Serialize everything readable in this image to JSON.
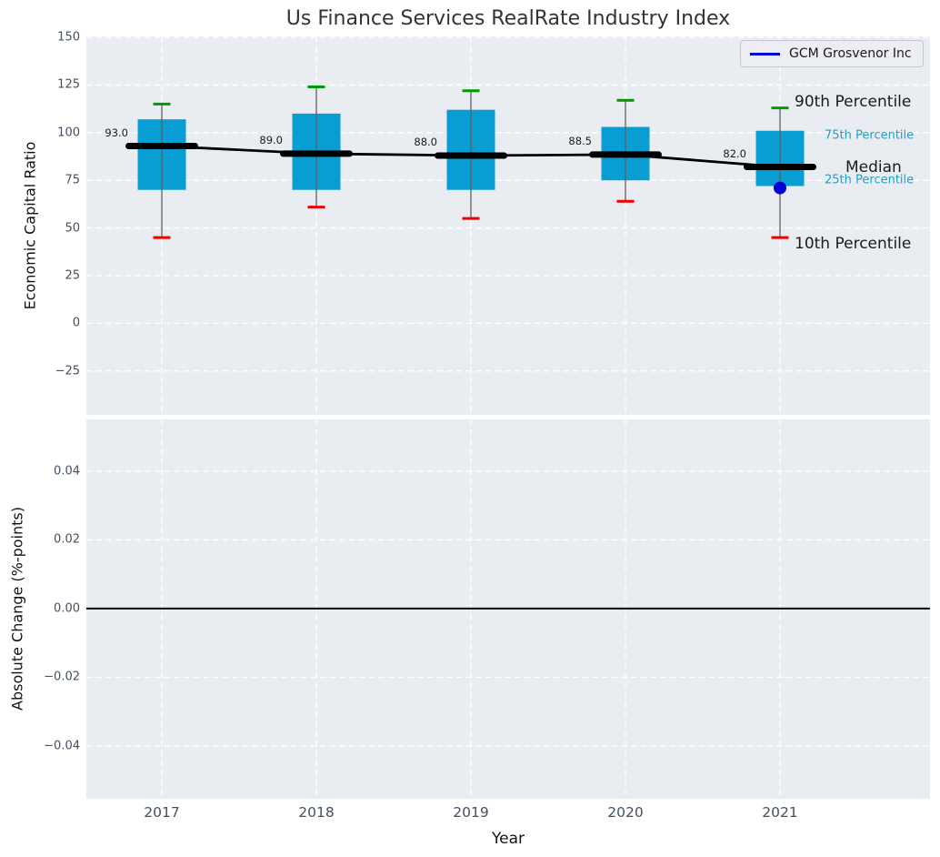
{
  "title": "Us Finance Services RealRate Industry Index",
  "legend": {
    "label": "GCM Grosvenor Inc"
  },
  "axes": {
    "xlabel": "Year",
    "top": {
      "ylabel": "Economic Capital Ratio",
      "ytick_labels": [
        "150",
        "125",
        "100",
        "75",
        "50",
        "25",
        "0",
        "−25"
      ]
    },
    "bottom": {
      "ylabel": "Absolute Change (%-points)",
      "ytick_labels": [
        "0.04",
        "0.02",
        "0.00",
        "−0.02",
        "−0.04"
      ]
    }
  },
  "annotations": {
    "p90": "90th Percentile",
    "p75": "75th Percentile",
    "median": "Median",
    "p25": "25th Percentile",
    "p10": "10th Percentile"
  },
  "colors": {
    "box": "#089dd3",
    "median": "#000000",
    "median_connector": "#000000",
    "whisker": "#5f5f5f",
    "cap_90th": "#009a00",
    "cap_10th": "#ee0000",
    "company": "#0000d6",
    "zero_line": "#000000",
    "panel_bg": "#e9edf1",
    "grid": "#ffffff",
    "tick_label": "#425066",
    "title": "#333333",
    "percentile_label": "#209fc9",
    "legend_bg": "#eceef4",
    "legend_border": "#c4c6d0"
  },
  "chart_data": [
    {
      "type": "boxplot",
      "title": "Us Finance Services RealRate Industry Index",
      "xlabel": "Year",
      "ylabel": "Economic Capital Ratio",
      "categories": [
        "2017",
        "2018",
        "2019",
        "2020",
        "2021"
      ],
      "ylim": [
        -48,
        150.5
      ],
      "yticks": [
        150,
        125,
        100,
        75,
        50,
        25,
        0,
        -25
      ],
      "grid": true,
      "legend_position": "upper right",
      "series": [
        {
          "year": "2017",
          "p10": 45,
          "p25": 70,
          "median": 93,
          "p75": 107,
          "p90": 115,
          "median_label": "93.0"
        },
        {
          "year": "2018",
          "p10": 61,
          "p25": 70,
          "median": 89,
          "p75": 110,
          "p90": 124,
          "median_label": "89.0"
        },
        {
          "year": "2019",
          "p10": 55,
          "p25": 70,
          "median": 88,
          "p75": 112,
          "p90": 122,
          "median_label": "88.0"
        },
        {
          "year": "2020",
          "p10": 64,
          "p25": 75,
          "median": 88.5,
          "p75": 103,
          "p90": 117,
          "median_label": "88.5"
        },
        {
          "year": "2021",
          "p10": 45,
          "p25": 72,
          "median": 82,
          "p75": 101,
          "p90": 113,
          "median_label": "82.0"
        }
      ],
      "median_line": [
        93,
        89,
        88,
        88.5,
        82
      ],
      "company_point": {
        "name": "GCM Grosvenor Inc",
        "year": "2021",
        "value": 71
      }
    },
    {
      "type": "line",
      "xlabel": "Year",
      "ylabel": "Absolute Change (%-points)",
      "categories": [
        "2017",
        "2018",
        "2019",
        "2020",
        "2021"
      ],
      "ylim": [
        -0.0554,
        0.0551
      ],
      "yticks": [
        0.04,
        0.02,
        0,
        -0.02,
        -0.04
      ],
      "grid": true,
      "zero_line": 0,
      "values": []
    }
  ]
}
